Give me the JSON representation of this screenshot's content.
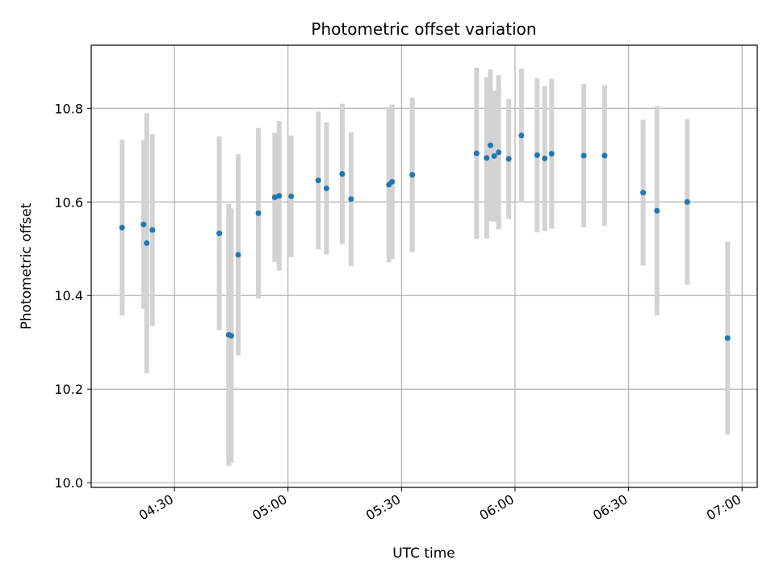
{
  "chart_data": {
    "type": "scatter",
    "title": "Photometric offset variation",
    "xlabel": "UTC time",
    "ylabel": "Photometric offset",
    "x_axis": "time",
    "x_ticks": [
      "04:30",
      "05:00",
      "05:30",
      "06:00",
      "06:30",
      "07:00"
    ],
    "xlim": [
      "04:08",
      "07:04"
    ],
    "y_ticks": [
      "10.0",
      "10.2",
      "10.4",
      "10.6",
      "10.8"
    ],
    "ylim": [
      9.99,
      10.935
    ],
    "grid": true,
    "colors": {
      "point": "#1f77b4",
      "errorbar": "#d3d3d3",
      "grid": "#b0b0b0"
    },
    "points": [
      {
        "x": "04:16:10",
        "y": 10.545,
        "err": 0.188
      },
      {
        "x": "04:21:50",
        "y": 10.552,
        "err": 0.18
      },
      {
        "x": "04:22:40",
        "y": 10.512,
        "err": 0.278
      },
      {
        "x": "04:24:10",
        "y": 10.54,
        "err": 0.205
      },
      {
        "x": "04:41:50",
        "y": 10.533,
        "err": 0.207
      },
      {
        "x": "04:44:20",
        "y": 10.316,
        "err": 0.28
      },
      {
        "x": "04:45:00",
        "y": 10.314,
        "err": 0.272
      },
      {
        "x": "04:46:50",
        "y": 10.487,
        "err": 0.215
      },
      {
        "x": "04:52:10",
        "y": 10.576,
        "err": 0.182
      },
      {
        "x": "04:56:30",
        "y": 10.61,
        "err": 0.138
      },
      {
        "x": "04:57:40",
        "y": 10.613,
        "err": 0.16
      },
      {
        "x": "05:00:50",
        "y": 10.612,
        "err": 0.13
      },
      {
        "x": "05:08:00",
        "y": 10.646,
        "err": 0.147
      },
      {
        "x": "05:10:10",
        "y": 10.629,
        "err": 0.141
      },
      {
        "x": "05:14:20",
        "y": 10.66,
        "err": 0.15
      },
      {
        "x": "05:16:40",
        "y": 10.606,
        "err": 0.143
      },
      {
        "x": "05:26:40",
        "y": 10.637,
        "err": 0.166
      },
      {
        "x": "05:27:30",
        "y": 10.643,
        "err": 0.165
      },
      {
        "x": "05:32:50",
        "y": 10.658,
        "err": 0.165
      },
      {
        "x": "05:49:50",
        "y": 10.704,
        "err": 0.183
      },
      {
        "x": "05:52:30",
        "y": 10.694,
        "err": 0.172
      },
      {
        "x": "05:53:30",
        "y": 10.721,
        "err": 0.162
      },
      {
        "x": "05:54:30",
        "y": 10.698,
        "err": 0.14
      },
      {
        "x": "05:55:40",
        "y": 10.706,
        "err": 0.165
      },
      {
        "x": "05:58:20",
        "y": 10.692,
        "err": 0.128
      },
      {
        "x": "06:01:40",
        "y": 10.742,
        "err": 0.143
      },
      {
        "x": "06:05:50",
        "y": 10.7,
        "err": 0.165
      },
      {
        "x": "06:07:50",
        "y": 10.693,
        "err": 0.155
      },
      {
        "x": "06:09:40",
        "y": 10.703,
        "err": 0.16
      },
      {
        "x": "06:18:10",
        "y": 10.699,
        "err": 0.153
      },
      {
        "x": "06:23:40",
        "y": 10.699,
        "err": 0.15
      },
      {
        "x": "06:33:50",
        "y": 10.62,
        "err": 0.156
      },
      {
        "x": "06:37:30",
        "y": 10.581,
        "err": 0.224
      },
      {
        "x": "06:45:30",
        "y": 10.6,
        "err": 0.177
      },
      {
        "x": "06:56:10",
        "y": 10.309,
        "err": 0.206
      }
    ]
  }
}
